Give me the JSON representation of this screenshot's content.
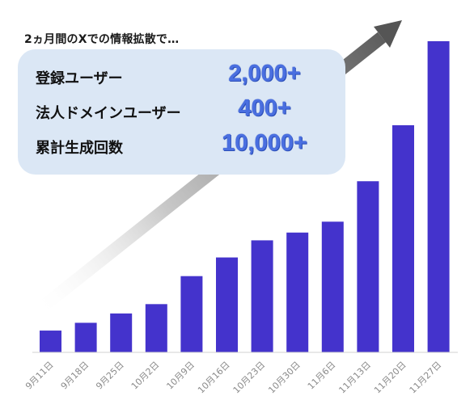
{
  "headline": "2ヵ月間のXでの情報拡散で…",
  "stats": [
    {
      "label": "登録ユーザー",
      "value": "2,000+"
    },
    {
      "label": "法人ドメインユーザー",
      "value": "400+"
    },
    {
      "label": "累計生成回数",
      "value": "10,000+"
    }
  ],
  "colors": {
    "bar": "#4433cc",
    "stat_value": "#4a6fe0",
    "box": "#dbe7f5",
    "arrow": "#555555"
  },
  "chart_data": {
    "type": "bar",
    "categories": [
      "9月11日",
      "9月18日",
      "9月25日",
      "10月2日",
      "10月9日",
      "10月16日",
      "10月23日",
      "10月30日",
      "11月6日",
      "11月13日",
      "11月20日",
      "11月27日"
    ],
    "values": [
      7,
      9.5,
      12.5,
      15.5,
      24.5,
      30.5,
      36,
      38.5,
      42,
      55,
      73,
      100
    ],
    "ylim": [
      0,
      100
    ],
    "grid": false,
    "legend": "none"
  }
}
